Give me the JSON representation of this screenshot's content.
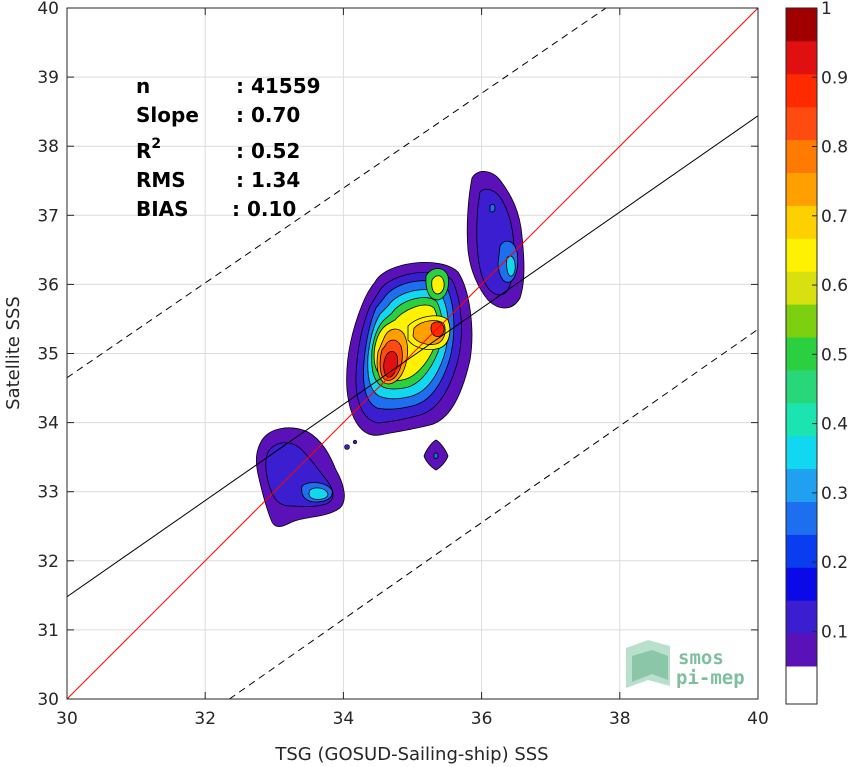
{
  "chart_data": {
    "type": "heatmap",
    "xlabel": "TSG (GOSUD-Sailing-ship) SSS",
    "ylabel": "Satellite SSS",
    "xlim": [
      30,
      40
    ],
    "ylim": [
      30,
      40
    ],
    "xticks": [
      "30",
      "32",
      "34",
      "36",
      "38",
      "40"
    ],
    "yticks": [
      "30",
      "31",
      "32",
      "33",
      "34",
      "35",
      "36",
      "37",
      "38",
      "39",
      "40"
    ],
    "grid": true,
    "stats": [
      {
        "label": "n",
        "value": ": 41559"
      },
      {
        "label": "Slope",
        "value": ": 0.70"
      },
      {
        "label": "R",
        "sup": "2",
        "value": ": 0.52"
      },
      {
        "label": "RMS",
        "value": ": 1.34"
      },
      {
        "label": "BIAS",
        "value": ": 0.10"
      }
    ],
    "lines": [
      {
        "kind": "identity",
        "color": "#ff0000",
        "points": [
          [
            30,
            30
          ],
          [
            40,
            40
          ]
        ]
      },
      {
        "kind": "regression",
        "color": "#000000",
        "points": [
          [
            30,
            31.48
          ],
          [
            40,
            38.44
          ]
        ]
      },
      {
        "kind": "upper-bound",
        "color": "#000000",
        "dash": true,
        "points": [
          [
            30,
            34.65
          ],
          [
            37.8,
            40
          ]
        ]
      },
      {
        "kind": "lower-bound",
        "color": "#000000",
        "dash": true,
        "points": [
          [
            32.35,
            30
          ],
          [
            40,
            35.35
          ]
        ]
      }
    ],
    "density_peaks": [
      {
        "x": 34.65,
        "y": 34.75,
        "level": 0.9
      },
      {
        "x": 35.4,
        "y": 35.45,
        "level": 0.85
      },
      {
        "x": 35.3,
        "y": 36.0,
        "level": 0.6
      },
      {
        "x": 36.42,
        "y": 36.25,
        "level": 0.35
      },
      {
        "x": 33.65,
        "y": 32.95,
        "level": 0.4
      },
      {
        "x": 35.35,
        "y": 33.55,
        "level": 0.1
      }
    ],
    "colorbar": {
      "ticks": [
        "0.1",
        "0.2",
        "0.3",
        "0.4",
        "0.5",
        "0.6",
        "0.7",
        "0.8",
        "0.9",
        "1"
      ],
      "colors": [
        "#ffffff",
        "#5a12b8",
        "#3b1ed0",
        "#0a0ae8",
        "#0a3cf0",
        "#1e6ef0",
        "#1fa0f0",
        "#11d8f0",
        "#1be4b0",
        "#28d878",
        "#2ad040",
        "#7cd010",
        "#d8e010",
        "#fff200",
        "#ffd000",
        "#ffa000",
        "#ff7a00",
        "#ff4a10",
        "#ff2a00",
        "#e01010",
        "#a00000"
      ]
    },
    "logo": [
      "smos",
      "pi-mep"
    ]
  }
}
